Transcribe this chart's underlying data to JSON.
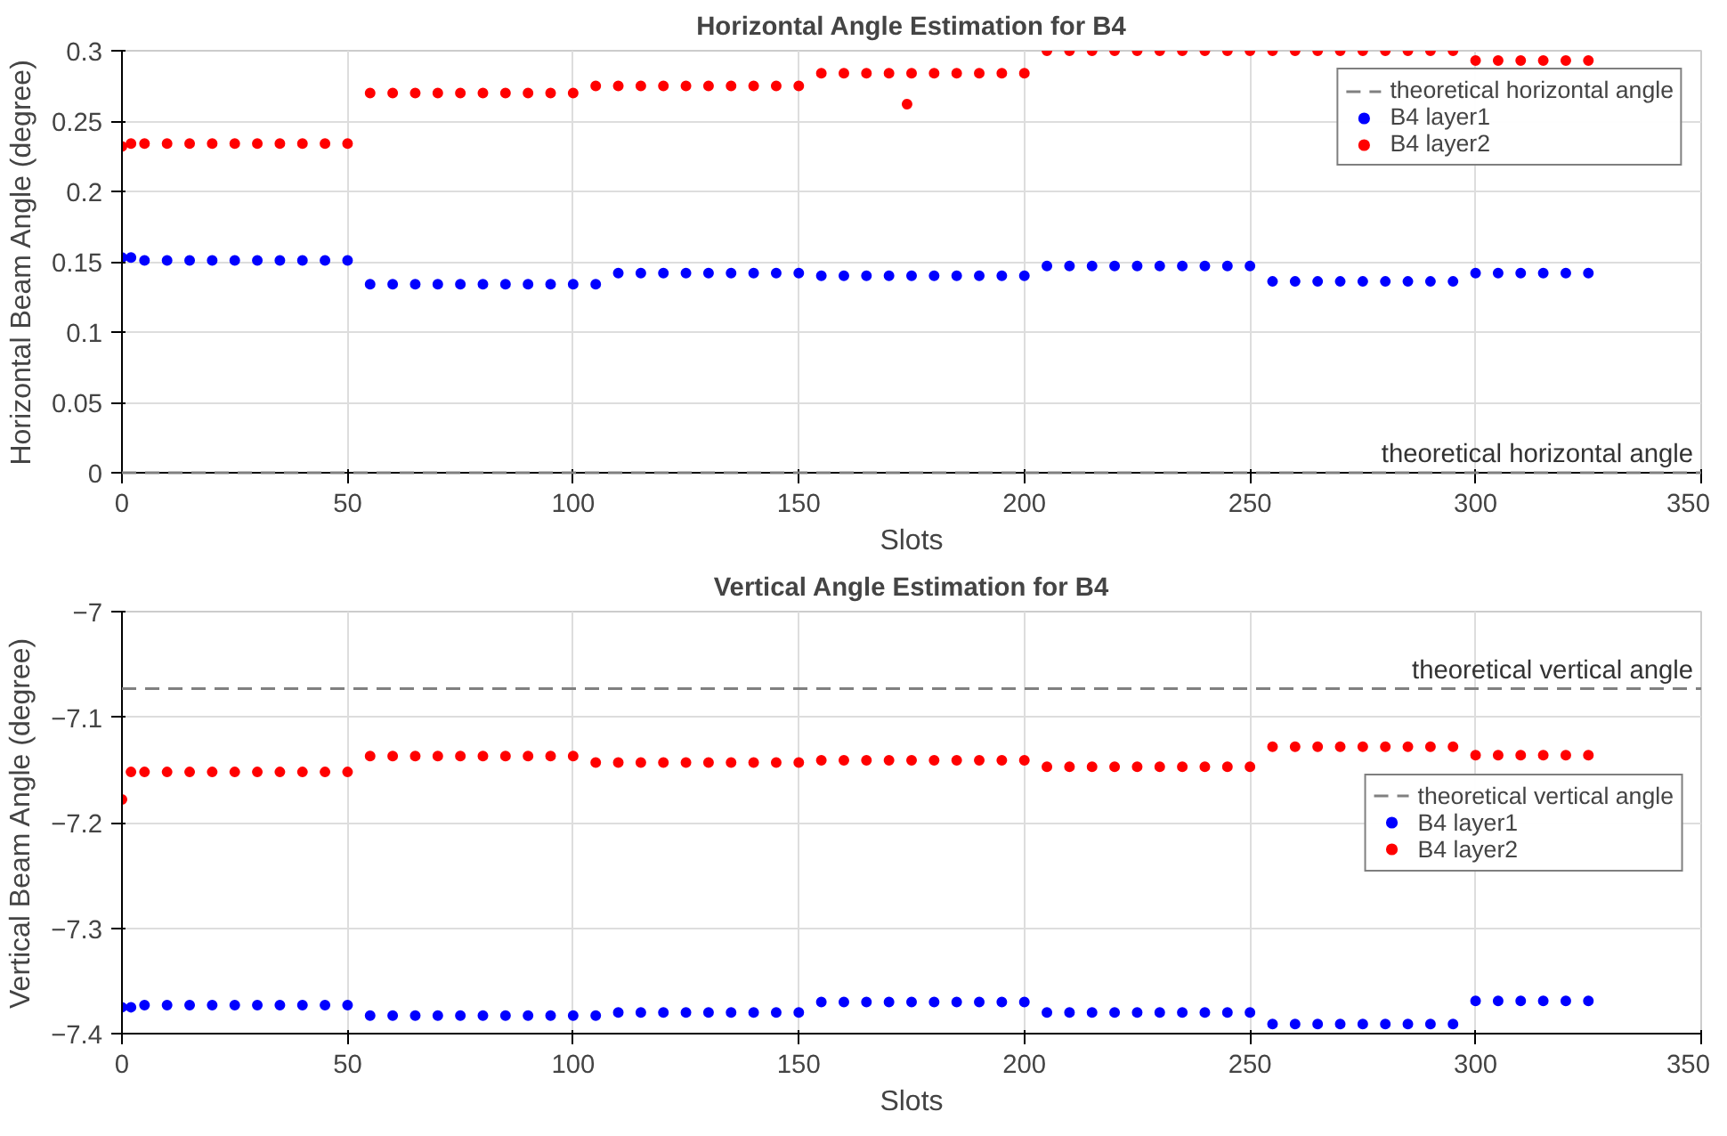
{
  "chart_data": [
    {
      "type": "scatter",
      "title": "Horizontal Angle Estimation for B4",
      "xlabel": "Slots",
      "ylabel": "Horizontal Beam Angle (degree)",
      "xlim": [
        0,
        350
      ],
      "xticks": [
        0,
        50,
        100,
        150,
        200,
        250,
        300,
        350
      ],
      "ylim": [
        0,
        0.3
      ],
      "yticks": [
        0,
        0.05,
        0.1,
        0.15,
        0.2,
        0.25,
        0.3
      ],
      "grid": true,
      "legend": "top right",
      "marker": "circle",
      "ref_lines": [
        {
          "axis": "y",
          "value": 0,
          "label": "theoretical horizontal angle",
          "color": "#808080",
          "line_style": "dashed"
        }
      ],
      "x": [
        0,
        2,
        5,
        10,
        15,
        20,
        25,
        30,
        35,
        40,
        45,
        50,
        55,
        60,
        65,
        70,
        75,
        80,
        85,
        90,
        95,
        100,
        105,
        110,
        115,
        120,
        125,
        130,
        135,
        140,
        145,
        150,
        155,
        160,
        165,
        170,
        175,
        180,
        185,
        190,
        195,
        200,
        205,
        210,
        215,
        220,
        225,
        230,
        235,
        240,
        245,
        250,
        255,
        260,
        265,
        270,
        275,
        280,
        285,
        290,
        295,
        300,
        305,
        310,
        315,
        320,
        325
      ],
      "series": [
        {
          "name": "B4 layer1",
          "color": "#0000ff",
          "values": [
            0.153,
            0.153,
            0.151,
            0.151,
            0.151,
            0.151,
            0.151,
            0.151,
            0.151,
            0.151,
            0.151,
            0.151,
            0.134,
            0.134,
            0.134,
            0.134,
            0.134,
            0.134,
            0.134,
            0.134,
            0.134,
            0.134,
            0.134,
            0.142,
            0.142,
            0.142,
            0.142,
            0.142,
            0.142,
            0.142,
            0.142,
            0.142,
            0.14,
            0.14,
            0.14,
            0.14,
            0.14,
            0.14,
            0.14,
            0.14,
            0.14,
            0.14,
            0.147,
            0.147,
            0.147,
            0.147,
            0.147,
            0.147,
            0.147,
            0.147,
            0.147,
            0.147,
            0.136,
            0.136,
            0.136,
            0.136,
            0.136,
            0.136,
            0.136,
            0.136,
            0.136,
            0.142,
            0.142,
            0.142,
            0.142,
            0.142,
            0.142
          ]
        },
        {
          "name": "B4 layer2",
          "color": "#ff0000",
          "values": [
            0.232,
            0.234,
            0.234,
            0.234,
            0.234,
            0.234,
            0.234,
            0.234,
            0.234,
            0.234,
            0.234,
            0.234,
            0.27,
            0.27,
            0.27,
            0.27,
            0.27,
            0.27,
            0.27,
            0.27,
            0.27,
            0.27,
            0.275,
            0.275,
            0.275,
            0.275,
            0.275,
            0.275,
            0.275,
            0.275,
            0.275,
            0.275,
            0.284,
            0.284,
            0.284,
            0.284,
            0.284,
            0.284,
            0.284,
            0.284,
            0.284,
            0.284,
            0.3,
            0.3,
            0.3,
            0.3,
            0.3,
            0.3,
            0.3,
            0.3,
            0.3,
            0.3,
            0.3,
            0.3,
            0.3,
            0.3,
            0.3,
            0.3,
            0.3,
            0.3,
            0.3,
            0.293,
            0.293,
            0.293,
            0.293,
            0.293,
            0.293
          ]
        },
        {
          "color": "#ff0000",
          "x": [
            174
          ],
          "values": [
            0.262
          ]
        }
      ]
    },
    {
      "type": "scatter",
      "title": "Vertical Angle Estimation for B4",
      "xlabel": "Slots",
      "ylabel": "Vertical Beam Angle (degree)",
      "xlim": [
        0,
        350
      ],
      "xticks": [
        0,
        50,
        100,
        150,
        200,
        250,
        300,
        350
      ],
      "ylim": [
        -7.4,
        -7.0
      ],
      "yticks": [
        -7.4,
        -7.3,
        -7.2,
        -7.1,
        -7
      ],
      "grid": true,
      "legend": "right",
      "marker": "circle",
      "ref_lines": [
        {
          "axis": "y",
          "value": -7.073,
          "label": "theoretical vertical angle",
          "color": "#808080",
          "line_style": "dashed"
        }
      ],
      "x": [
        0,
        2,
        5,
        10,
        15,
        20,
        25,
        30,
        35,
        40,
        45,
        50,
        55,
        60,
        65,
        70,
        75,
        80,
        85,
        90,
        95,
        100,
        105,
        110,
        115,
        120,
        125,
        130,
        135,
        140,
        145,
        150,
        155,
        160,
        165,
        170,
        175,
        180,
        185,
        190,
        195,
        200,
        205,
        210,
        215,
        220,
        225,
        230,
        235,
        240,
        245,
        250,
        255,
        260,
        265,
        270,
        275,
        280,
        285,
        290,
        295,
        300,
        305,
        310,
        315,
        320,
        325
      ],
      "series": [
        {
          "name": "B4 layer1",
          "color": "#0000ff",
          "values": [
            -7.375,
            -7.375,
            -7.373,
            -7.373,
            -7.373,
            -7.373,
            -7.373,
            -7.373,
            -7.373,
            -7.373,
            -7.373,
            -7.373,
            -7.383,
            -7.383,
            -7.383,
            -7.383,
            -7.383,
            -7.383,
            -7.383,
            -7.383,
            -7.383,
            -7.383,
            -7.383,
            -7.38,
            -7.38,
            -7.38,
            -7.38,
            -7.38,
            -7.38,
            -7.38,
            -7.38,
            -7.38,
            -7.37,
            -7.37,
            -7.37,
            -7.37,
            -7.37,
            -7.37,
            -7.37,
            -7.37,
            -7.37,
            -7.37,
            -7.38,
            -7.38,
            -7.38,
            -7.38,
            -7.38,
            -7.38,
            -7.38,
            -7.38,
            -7.38,
            -7.38,
            -7.391,
            -7.391,
            -7.391,
            -7.391,
            -7.391,
            -7.391,
            -7.391,
            -7.391,
            -7.391,
            -7.369,
            -7.369,
            -7.369,
            -7.369,
            -7.369,
            -7.369
          ]
        },
        {
          "name": "B4 layer2",
          "color": "#ff0000",
          "values": [
            -7.178,
            -7.152,
            -7.152,
            -7.152,
            -7.152,
            -7.152,
            -7.152,
            -7.152,
            -7.152,
            -7.152,
            -7.152,
            -7.152,
            -7.137,
            -7.137,
            -7.137,
            -7.137,
            -7.137,
            -7.137,
            -7.137,
            -7.137,
            -7.137,
            -7.137,
            -7.143,
            -7.143,
            -7.143,
            -7.143,
            -7.143,
            -7.143,
            -7.143,
            -7.143,
            -7.143,
            -7.143,
            -7.141,
            -7.141,
            -7.141,
            -7.141,
            -7.141,
            -7.141,
            -7.141,
            -7.141,
            -7.141,
            -7.141,
            -7.147,
            -7.147,
            -7.147,
            -7.147,
            -7.147,
            -7.147,
            -7.147,
            -7.147,
            -7.147,
            -7.147,
            -7.128,
            -7.128,
            -7.128,
            -7.128,
            -7.128,
            -7.128,
            -7.128,
            -7.128,
            -7.128,
            -7.136,
            -7.136,
            -7.136,
            -7.136,
            -7.136,
            -7.136
          ]
        }
      ]
    }
  ]
}
